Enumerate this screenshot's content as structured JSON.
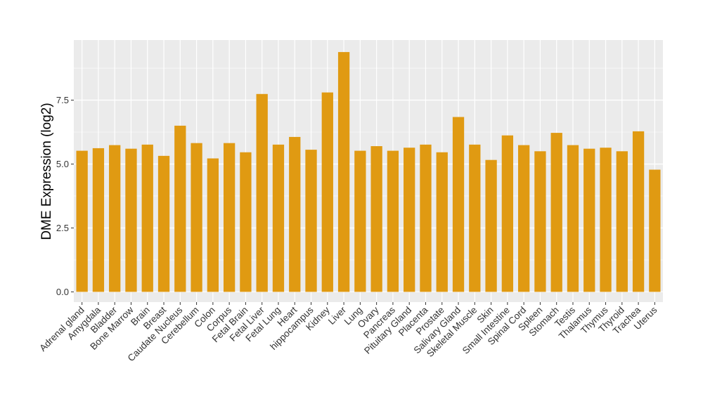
{
  "chart_data": {
    "type": "bar",
    "title": "",
    "xlabel": "",
    "ylabel": "DME Expression (log2)",
    "categories": [
      "Adrenal gland",
      "Amygdala",
      "Bladder",
      "Bone Marrow",
      "Brain",
      "Breast",
      "Caudate Nucleus",
      "Cerebellum",
      "Colon",
      "Corpus",
      "Fetal Brain",
      "Fetal Liver",
      "Fetal Lung",
      "Heart",
      "hippocampus",
      "Kidney",
      "Liver",
      "Lung",
      "Ovary",
      "Pancreas",
      "Pituitary Gland",
      "Placenta",
      "Prostate",
      "Salivary Gland",
      "Skeletal Muscle",
      "Skin",
      "Small Intestine",
      "Spinal Cord",
      "Spleen",
      "Stomach",
      "Testis",
      "Thalamus",
      "Thymus",
      "Thyroid",
      "Trachea",
      "Uterus"
    ],
    "values": [
      5.52,
      5.62,
      5.74,
      5.6,
      5.76,
      5.32,
      6.5,
      5.82,
      5.22,
      5.82,
      5.46,
      7.74,
      5.76,
      6.06,
      5.56,
      7.8,
      9.38,
      5.52,
      5.7,
      5.52,
      5.64,
      5.76,
      5.46,
      6.84,
      5.76,
      5.16,
      6.12,
      5.74,
      5.5,
      6.22,
      5.74,
      5.6,
      5.64,
      5.5,
      6.28,
      4.78
    ],
    "yticks": [
      "0.0",
      "2.5",
      "5.0",
      "7.5"
    ],
    "ylim": [
      -0.4,
      9.85
    ],
    "bar_color": "#E09A12",
    "panel_color": "#EBEBEB",
    "grid": true,
    "legend": "none"
  }
}
